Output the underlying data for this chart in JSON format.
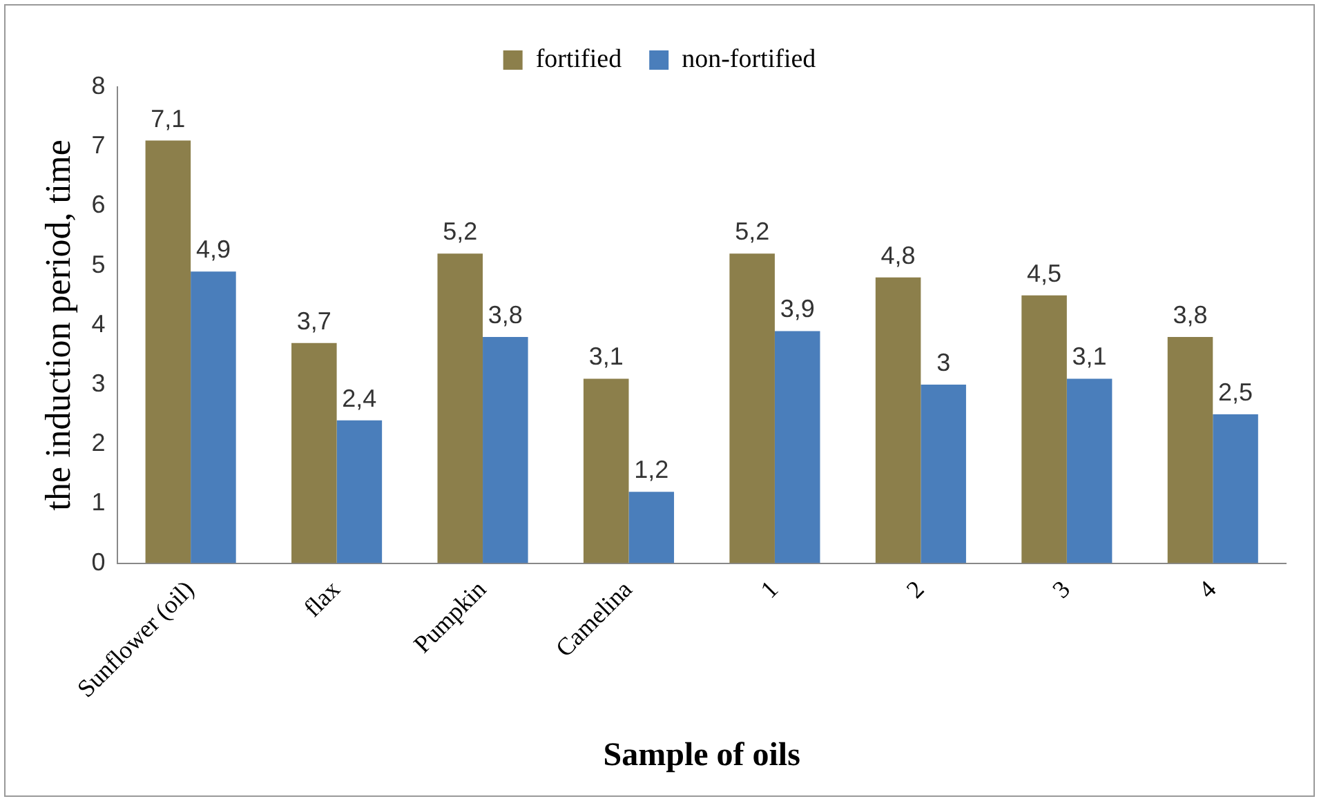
{
  "chart_data": {
    "type": "bar",
    "xlabel": "Sample of oils",
    "ylabel": "the induction period, time",
    "categories": [
      "Sunflower (oil)",
      "flax",
      "Pumpkin",
      "Camelina",
      "1",
      "2",
      "3",
      "4"
    ],
    "series": [
      {
        "name": "fortified",
        "color": "#8c7f4b",
        "values": [
          7.1,
          3.7,
          5.2,
          3.1,
          5.2,
          4.8,
          4.5,
          3.8
        ],
        "value_labels": [
          "7,1",
          "3,7",
          "5,2",
          "3,1",
          "5,2",
          "4,8",
          "4,5",
          "3,8"
        ]
      },
      {
        "name": "non-fortified",
        "color": "#4a7ebb",
        "values": [
          4.9,
          2.4,
          3.8,
          1.2,
          3.9,
          3,
          3.1,
          2.5
        ],
        "value_labels": [
          "4,9",
          "2,4",
          "3,8",
          "1,2",
          "3,9",
          "3",
          "3,1",
          "2,5"
        ]
      }
    ],
    "ylim": [
      0,
      8
    ],
    "yticks": [
      0,
      1,
      2,
      3,
      4,
      5,
      6,
      7,
      8
    ],
    "grid": false,
    "legend": "top"
  }
}
